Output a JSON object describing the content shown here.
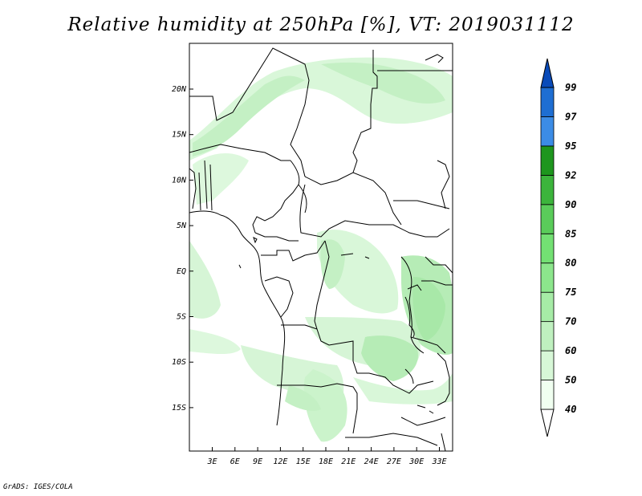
{
  "title": "Relative humidity at 250hPa [%], VT: 2019031112",
  "footer": "GrADS: IGES/COLA",
  "map": {
    "variable": "Relative humidity",
    "level": "250hPa",
    "units": "%",
    "valid_time": "2019031112",
    "lat_labels": [
      "20N",
      "15N",
      "10N",
      "5N",
      "EQ",
      "5S",
      "10S",
      "15S"
    ],
    "lon_labels": [
      "3E",
      "6E",
      "9E",
      "12E",
      "15E",
      "18E",
      "21E",
      "24E",
      "27E",
      "30E",
      "33E"
    ]
  },
  "colorbar": {
    "levels": [
      "40",
      "50",
      "60",
      "70",
      "75",
      "80",
      "85",
      "90",
      "92",
      "95",
      "97",
      "99"
    ],
    "colors": [
      "#f0fff0",
      "#d7f7d7",
      "#bff0bf",
      "#a6eba6",
      "#8ce68c",
      "#73e073",
      "#5acc5a",
      "#3cb43c",
      "#1e961e",
      "#3c8ce6",
      "#1e6ed2",
      "#0a4bb9"
    ]
  }
}
